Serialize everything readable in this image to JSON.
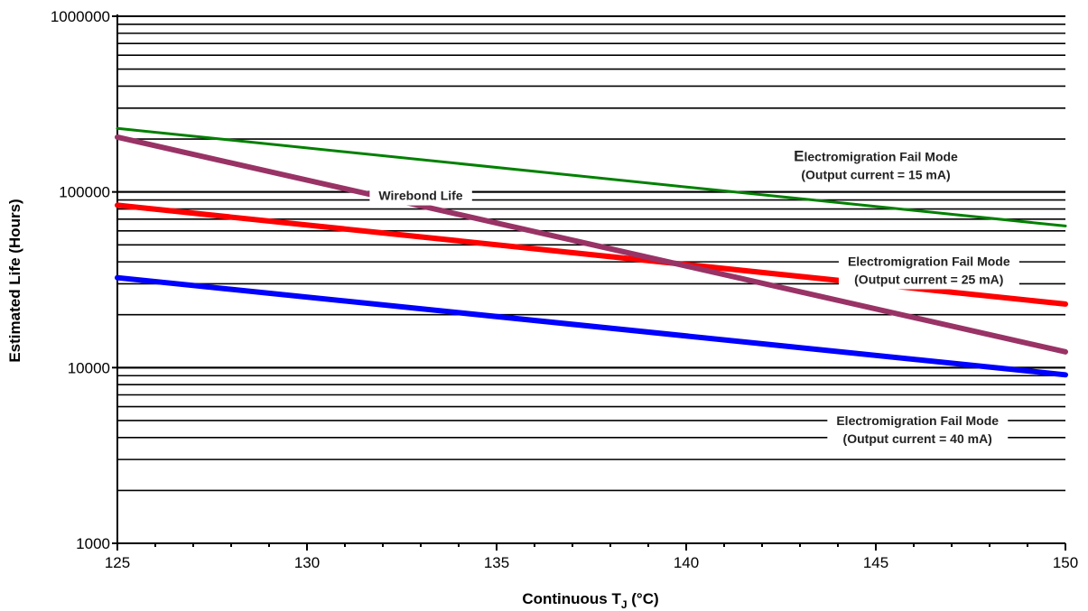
{
  "chart_data": {
    "type": "line",
    "xlabel_main": "Continuous T",
    "xlabel_sub": "J",
    "xlabel_unit": " (°C)",
    "ylabel": "Estimated Life (Hours)",
    "x_ticks": [
      "125",
      "130",
      "135",
      "140",
      "145",
      "150"
    ],
    "y_ticks": [
      "1000",
      "10000",
      "100000",
      "1000000"
    ],
    "xlim": [
      125,
      150
    ],
    "ylim": [
      1000,
      1000000
    ],
    "y_scale": "log",
    "grid": "horizontal",
    "series": [
      {
        "color": "#008000",
        "x": [
          125,
          150
        ],
        "y": [
          230000,
          64000
        ]
      },
      {
        "color": "#ff0000",
        "x": [
          125,
          150
        ],
        "y": [
          84000,
          23000
        ]
      },
      {
        "color": "#0000ff",
        "x": [
          125,
          150
        ],
        "y": [
          32500,
          9100
        ]
      },
      {
        "color": "#993366",
        "x": [
          125,
          150
        ],
        "y": [
          205000,
          12300
        ]
      }
    ],
    "annotations": [
      {
        "line1_first": "E",
        "line1_rest": "lectromigration Fail Mode",
        "line2": "(Output current = 15 mA)",
        "x": 145,
        "y": 150000
      },
      {
        "line1": "Wirebond Life",
        "x": 133,
        "y": 90000
      },
      {
        "line1": "Electromigration Fail Mode",
        "line2": "(Output current = 25 mA)",
        "x": 146.4,
        "y": 38000
      },
      {
        "line1": "Electromigration Fail Mode",
        "line2": "(Output current = 40 mA)",
        "x": 146.1,
        "y": 4700
      }
    ]
  }
}
